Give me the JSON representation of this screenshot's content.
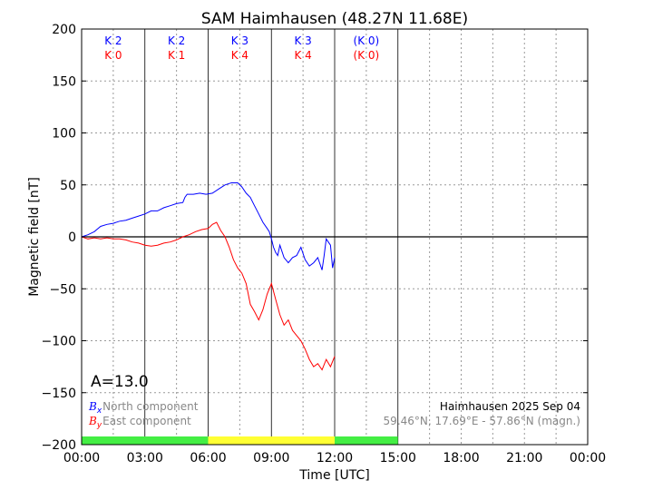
{
  "chart_data": {
    "type": "line",
    "title": "SAM Haimhausen (48.27N 11.68E)",
    "xlabel": "Time [UTC]",
    "ylabel": "Magnetic field [nT]",
    "xlim": [
      0,
      24
    ],
    "ylim": [
      -200,
      200
    ],
    "grid": true,
    "x_tick_labels": [
      "00:00",
      "03:00",
      "06:00",
      "09:00",
      "12:00",
      "15:00",
      "18:00",
      "21:00",
      "00:00"
    ],
    "y_tick_values": [
      200,
      150,
      100,
      50,
      0,
      -50,
      -100,
      -150,
      -200
    ],
    "k_indices": [
      {
        "x_label": "K 2",
        "y_label": "K 0",
        "hour": 1.5
      },
      {
        "x_label": "K 2",
        "y_label": "K 1",
        "hour": 4.5
      },
      {
        "x_label": "K 3",
        "y_label": "K 4",
        "hour": 7.5
      },
      {
        "x_label": "K 3",
        "y_label": "K 4",
        "hour": 10.5
      },
      {
        "x_label": "(K 0)",
        "y_label": "(K 0)",
        "hour": 13.5
      }
    ],
    "status_bar": [
      {
        "from": 0,
        "to": 6,
        "color": "#44ee44"
      },
      {
        "from": 6,
        "to": 12,
        "color": "#ffff33"
      },
      {
        "from": 12,
        "to": 15,
        "color": "#44ee44"
      }
    ],
    "a_index": "A=13.0",
    "legend": [
      {
        "symbol": "B",
        "sub": "x",
        "text": "North component",
        "color": "#0000ff"
      },
      {
        "symbol": "B",
        "sub": "y",
        "text": "East component",
        "color": "#ff0000"
      }
    ],
    "station_line": "Haimhausen 2025 Sep 04",
    "coords_line": "59.46°N, 17.69°E - 57.86°N (magn.)",
    "series": [
      {
        "name": "North component",
        "color": "#0000ff",
        "x": [
          0,
          0.3,
          0.6,
          0.9,
          1.2,
          1.5,
          1.8,
          2.1,
          2.4,
          2.7,
          3.0,
          3.3,
          3.6,
          3.9,
          4.2,
          4.5,
          4.8,
          4.9,
          5.0,
          5.3,
          5.6,
          5.9,
          6.2,
          6.5,
          6.8,
          7.1,
          7.4,
          7.6,
          7.8,
          8.0,
          8.2,
          8.4,
          8.6,
          8.8,
          8.9,
          9.0,
          9.1,
          9.2,
          9.3,
          9.4,
          9.6,
          9.8,
          10.0,
          10.2,
          10.4,
          10.6,
          10.8,
          11.0,
          11.2,
          11.4,
          11.5,
          11.6,
          11.8,
          11.9,
          12.0
        ],
        "y": [
          0,
          2,
          5,
          10,
          12,
          13,
          15,
          16,
          18,
          20,
          22,
          25,
          25,
          28,
          30,
          32,
          33,
          38,
          41,
          41,
          42,
          41,
          42,
          46,
          50,
          52,
          52,
          48,
          42,
          38,
          30,
          22,
          14,
          8,
          5,
          -2,
          -10,
          -15,
          -18,
          -8,
          -20,
          -25,
          -20,
          -18,
          -10,
          -22,
          -28,
          -25,
          -20,
          -32,
          -18,
          -2,
          -8,
          -30,
          -20
        ]
      },
      {
        "name": "East component",
        "color": "#ff0000",
        "x": [
          0,
          0.3,
          0.6,
          0.9,
          1.2,
          1.5,
          1.8,
          2.1,
          2.4,
          2.7,
          3.0,
          3.3,
          3.6,
          3.9,
          4.2,
          4.5,
          4.8,
          5.1,
          5.4,
          5.7,
          6.0,
          6.2,
          6.4,
          6.6,
          6.8,
          7.0,
          7.2,
          7.4,
          7.6,
          7.8,
          8.0,
          8.2,
          8.4,
          8.6,
          8.8,
          9.0,
          9.2,
          9.4,
          9.6,
          9.8,
          10.0,
          10.2,
          10.4,
          10.6,
          10.8,
          11.0,
          11.2,
          11.4,
          11.6,
          11.8,
          12.0
        ],
        "y": [
          0,
          -2,
          -1,
          -2,
          -1,
          -2,
          -2,
          -3,
          -5,
          -6,
          -8,
          -9,
          -8,
          -6,
          -5,
          -3,
          0,
          2,
          5,
          7,
          8,
          12,
          14,
          6,
          0,
          -10,
          -22,
          -30,
          -35,
          -45,
          -65,
          -72,
          -80,
          -70,
          -55,
          -45,
          -60,
          -75,
          -85,
          -80,
          -90,
          -95,
          -100,
          -108,
          -118,
          -125,
          -122,
          -128,
          -118,
          -125,
          -115
        ]
      }
    ]
  }
}
